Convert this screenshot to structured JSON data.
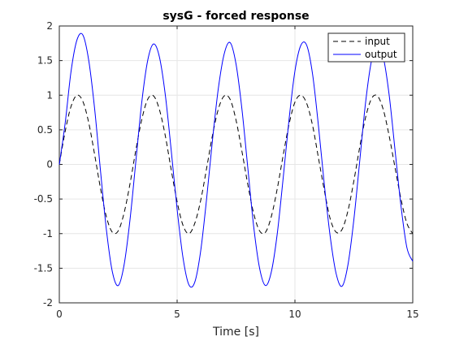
{
  "chart_data": {
    "type": "line",
    "title": "sysG - forced response",
    "xlabel": "Time [s]",
    "ylabel": "",
    "xlim": [
      0,
      15
    ],
    "ylim": [
      -2,
      2
    ],
    "xticks": [
      0,
      5,
      10,
      15
    ],
    "yticks": [
      -2,
      -1.5,
      -1,
      -0.5,
      0,
      0.5,
      1,
      1.5,
      2
    ],
    "grid": true,
    "legend_position": "top-right",
    "x": [
      0,
      0.25,
      0.5,
      0.75,
      1.0,
      1.25,
      1.5,
      1.75,
      2.0,
      2.25,
      2.5,
      2.75,
      3.0,
      3.25,
      3.5,
      3.75,
      4.0,
      4.25,
      4.5,
      4.75,
      5.0,
      5.25,
      5.5,
      5.75,
      6.0,
      6.25,
      6.5,
      6.75,
      7.0,
      7.25,
      7.5,
      7.75,
      8.0,
      8.25,
      8.5,
      8.75,
      9.0,
      9.25,
      9.5,
      9.75,
      10.0,
      10.25,
      10.5,
      10.75,
      11.0,
      11.25,
      11.5,
      11.75,
      12.0,
      12.25,
      12.5,
      12.75,
      13.0,
      13.25,
      13.5,
      13.75,
      14.0,
      14.25,
      14.5,
      14.75,
      15.0
    ],
    "series": [
      {
        "name": "input",
        "color": "#000000",
        "dash": "dashed",
        "values": [
          0,
          0.48,
          0.84,
          1.0,
          0.91,
          0.6,
          0.14,
          -0.35,
          -0.76,
          -0.98,
          -0.96,
          -0.7,
          -0.28,
          0.21,
          0.65,
          0.94,
          0.99,
          0.79,
          0.41,
          -0.08,
          -0.54,
          -0.88,
          -1.0,
          -0.85,
          -0.52,
          -0.06,
          0.42,
          0.8,
          0.99,
          0.94,
          0.64,
          0.19,
          -0.29,
          -0.71,
          -0.96,
          -0.98,
          -0.75,
          -0.35,
          0.13,
          0.58,
          0.9,
          1.0,
          0.88,
          0.56,
          0.09,
          -0.38,
          -0.79,
          -0.98,
          -0.94,
          -0.67,
          -0.24,
          0.25,
          0.68,
          0.95,
          0.99,
          0.79,
          0.41,
          -0.05,
          -0.5,
          -0.85,
          -1.0
        ]
      },
      {
        "name": "output",
        "color": "#0000ff",
        "dash": "solid",
        "values": [
          0,
          0.6,
          1.35,
          1.8,
          1.87,
          1.5,
          0.8,
          -0.1,
          -0.95,
          -1.55,
          -1.75,
          -1.45,
          -0.8,
          0.05,
          0.9,
          1.5,
          1.74,
          1.55,
          1.0,
          0.2,
          -0.65,
          -1.35,
          -1.74,
          -1.7,
          -1.25,
          -0.5,
          0.35,
          1.1,
          1.6,
          1.76,
          1.45,
          0.8,
          -0.05,
          -0.9,
          -1.5,
          -1.75,
          -1.55,
          -1.0,
          -0.2,
          0.65,
          1.35,
          1.72,
          1.72,
          1.3,
          0.55,
          -0.3,
          -1.05,
          -1.58,
          -1.76,
          -1.45,
          -0.8,
          0.05,
          0.9,
          1.5,
          1.75,
          1.55,
          1.0,
          0.2,
          -0.6,
          -1.2,
          -1.4
        ]
      }
    ]
  }
}
